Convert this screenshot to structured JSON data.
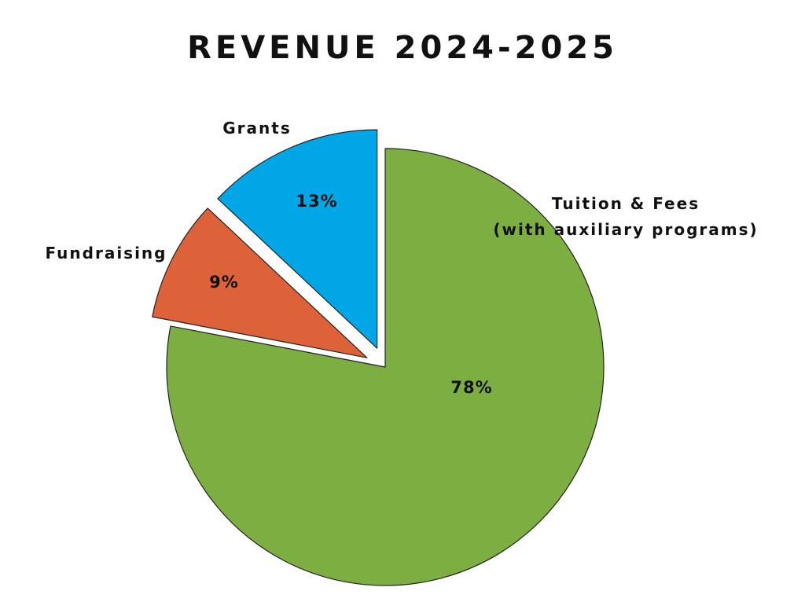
{
  "chart_data": {
    "type": "pie",
    "title": "REVENUE 2024-2025",
    "slices": [
      {
        "name": "Tuition & Fees",
        "name_line2": "(with auxiliary programs)",
        "value": 78,
        "value_label": "78%",
        "color": "#7DAE41",
        "exploded": false
      },
      {
        "name": "Fundraising",
        "value": 9,
        "value_label": "9%",
        "color": "#DD623A",
        "exploded": true
      },
      {
        "name": "Grants",
        "value": 13,
        "value_label": "13%",
        "color": "#00A6E6",
        "exploded": true
      }
    ],
    "start_angle": "12 o'clock",
    "direction": "clockwise"
  }
}
